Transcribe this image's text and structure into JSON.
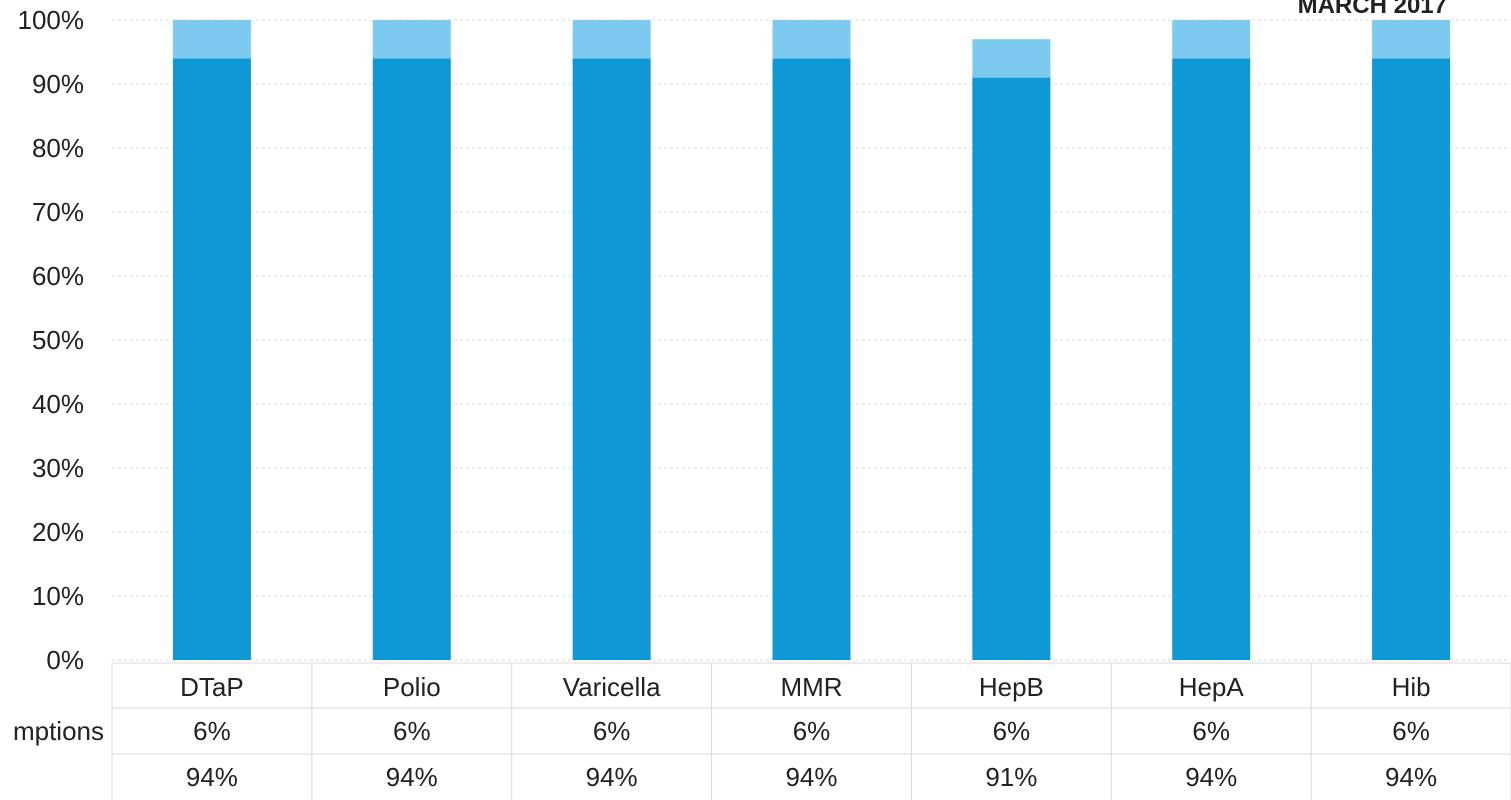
{
  "page": {
    "title": "MARCH 2017"
  },
  "chart_data": {
    "type": "bar",
    "stacked": true,
    "title": "MARCH 2017",
    "categories": [
      "DTaP",
      "Polio",
      "Varicella",
      "MMR",
      "HepB",
      "HepA",
      "Hib"
    ],
    "ylim": [
      0,
      100
    ],
    "yticks": [
      "0%",
      "10%",
      "20%",
      "30%",
      "40%",
      "50%",
      "60%",
      "70%",
      "80%",
      "90%",
      "100%"
    ],
    "grid": true,
    "series": [
      {
        "name": "",
        "values": [
          94,
          94,
          94,
          94,
          91,
          94,
          94
        ],
        "labels": [
          "94%",
          "94%",
          "94%",
          "94%",
          "91%",
          "94%",
          "94%"
        ],
        "color": "#0f98d6"
      },
      {
        "name": "mptions",
        "values": [
          6,
          6,
          6,
          6,
          6,
          6,
          6
        ],
        "labels": [
          "6%",
          "6%",
          "6%",
          "6%",
          "6%",
          "6%",
          "6%"
        ],
        "color": "#7dcaf1"
      }
    ]
  }
}
